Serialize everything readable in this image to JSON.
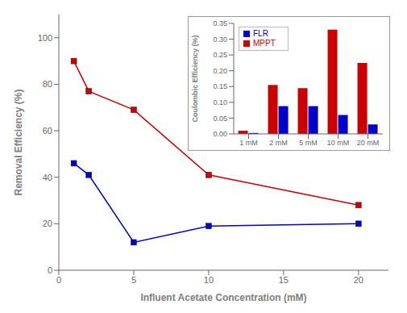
{
  "chart_data": [
    {
      "type": "line",
      "x": [
        1,
        2,
        5,
        10,
        20
      ],
      "series": [
        {
          "color": "#CC0000",
          "marker": "square",
          "values": [
            90,
            77,
            69,
            41,
            28
          ]
        },
        {
          "color": "#0000CC",
          "marker": "square",
          "values": [
            46,
            41,
            12,
            19,
            20
          ]
        }
      ],
      "xlabel": "Influent Acetate Concentration (mM)",
      "ylabel": "Removal Efficiency (%)",
      "xlim": [
        0,
        22
      ],
      "ylim": [
        0,
        110
      ],
      "xticks": [
        0,
        5,
        10,
        15,
        20
      ],
      "yticks": [
        0,
        20,
        40,
        60,
        80,
        100
      ],
      "grid": false
    },
    {
      "type": "bar",
      "categories": [
        "1 mM",
        "2 mM",
        "5 mM",
        "10 mM",
        "20 mM"
      ],
      "series": [
        {
          "name": "MPPT",
          "color": "#CC0000",
          "values": [
            0.01,
            0.155,
            0.145,
            0.33,
            0.225
          ]
        },
        {
          "name": "FLR",
          "color": "#0000CC",
          "values": [
            0.003,
            0.088,
            0.088,
            0.06,
            0.03
          ]
        }
      ],
      "ylabel": "Coulombic Efficiency (%)",
      "ylim": [
        0,
        0.35
      ],
      "yticks": [
        {
          "value": 0,
          "label": "0.00"
        },
        0.05,
        {
          "value": 0.1,
          "label": "0.10"
        },
        0.15,
        {
          "value": 0.2,
          "label": "0.20"
        },
        0.25,
        {
          "value": 0.3,
          "label": "0.30"
        },
        0.35
      ],
      "legend": "upper left",
      "grid": false
    }
  ]
}
